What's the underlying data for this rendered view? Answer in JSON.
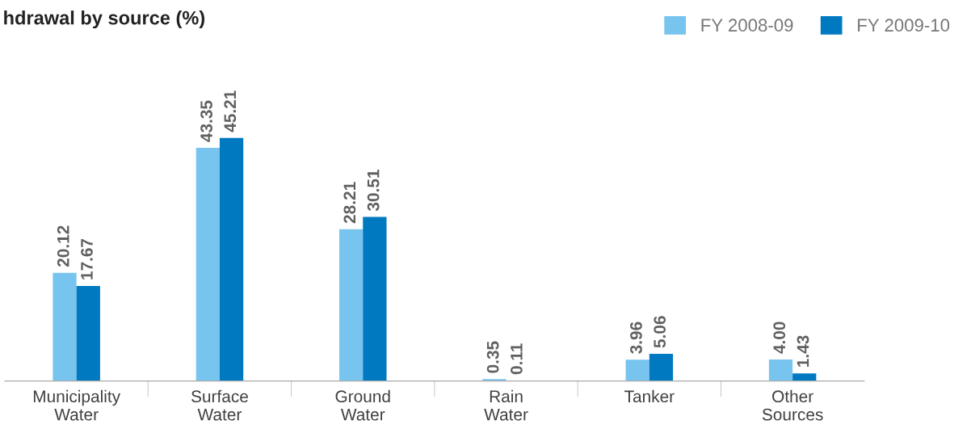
{
  "chart_data": {
    "type": "bar",
    "title": "hdrawal by source (%)",
    "categories": [
      "Municipality\nWater",
      "Surface\nWater",
      "Ground\nWater",
      "Rain\nWater",
      "Tanker",
      "Other\nSources"
    ],
    "series": [
      {
        "name": "FY 2008-09",
        "color": "#77c4ef",
        "values": [
          20.12,
          43.35,
          28.21,
          0.35,
          3.96,
          4.0
        ],
        "value_labels": [
          "20.12",
          "43.35",
          "28.21",
          "0.35",
          "3.96",
          "4.00"
        ]
      },
      {
        "name": "FY 2009-10",
        "color": "#0079c1",
        "values": [
          17.67,
          45.21,
          30.51,
          0.11,
          5.06,
          1.43
        ],
        "value_labels": [
          "17.67",
          "45.21",
          "30.51",
          "0.11",
          "5.06",
          "1.43"
        ]
      }
    ],
    "legend": "top right",
    "grid": false
  }
}
